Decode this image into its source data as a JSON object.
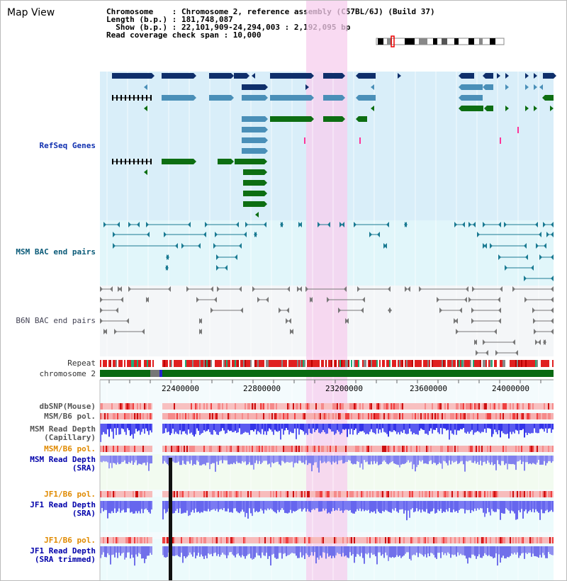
{
  "title": "Map View",
  "info": {
    "line1": "Chromosome    : Chromosome 2, reference assembly (C57BL/6J) (Build 37)",
    "line2": "Length (b.p.) : 181,748,087",
    "line3": "  Show (b.p.) : 22,101,909-24,294,003 : 2,192,095 bp",
    "line4": "Read coverage check span : 10,000"
  },
  "tracks": {
    "refseq": "RefSeq Genes",
    "msm_bac": "MSM BAC end pairs",
    "b6n_bac": "B6N BAC end pairs",
    "repeat": "Repeat",
    "chromosome": "chromosome 2",
    "dbsnp": "dbSNP(Mouse)",
    "msm_b6_pol": "MSM/B6 pol.",
    "msm_read_depth_cap": "MSM Read Depth\n(Capillary)",
    "msm_b6_pol2": "MSM/B6 pol.",
    "msm_read_depth_sra": "MSM Read Depth\n(SRA)",
    "jf1_b6_pol": "JF1/B6 pol.",
    "jf1_read_depth_sra": "JF1 Read Depth\n(SRA)",
    "jf1_b6_pol2": "JF1/B6 pol.",
    "jf1_read_depth_trim": "JF1 Read Depth\n(SRA trimmed)"
  },
  "axis": {
    "ticks": [
      "22400000",
      "22800000",
      "23200000",
      "23600000",
      "24000000"
    ]
  },
  "colors": {
    "refseq_bg": "#d9eef9",
    "msm_bg": "#e1f6fa",
    "b6n_bg": "#f4f6f8",
    "highlight": "#f7cdee",
    "gene_dark": "#0f2f6b",
    "gene_mid": "#4a8fb8",
    "gene_green": "#0d6e12",
    "bac_teal": "#1a7a92",
    "depth_blue": "#3a3af0",
    "pol_red": "#e23030",
    "msm_label": "#0a5a78",
    "sra_label": "#0000aa",
    "pol_label": "#e08a00",
    "refseq_label": "#1030b0"
  }
}
